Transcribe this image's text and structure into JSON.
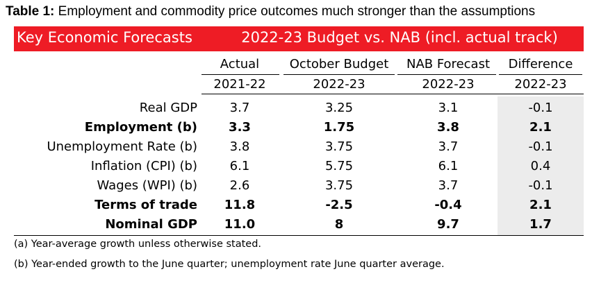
{
  "caption": {
    "prefix": "Table 1:",
    "text": "Employment and commodity price outcomes much stronger than the assumptions"
  },
  "banner": {
    "left": "Key Economic Forecasts",
    "right": "2022-23 Budget vs. NAB (incl. actual track)"
  },
  "columns": [
    {
      "name": "Actual",
      "period": "2021-22"
    },
    {
      "name": "October Budget",
      "period": "2022-23"
    },
    {
      "name": "NAB Forecast",
      "period": "2022-23"
    },
    {
      "name": "Difference",
      "period": "2022-23"
    }
  ],
  "rows": [
    {
      "label": "Real GDP",
      "bold": false,
      "values": [
        "3.7",
        "3.25",
        "3.1",
        "-0.1"
      ]
    },
    {
      "label": "Employment (b)",
      "bold": true,
      "values": [
        "3.3",
        "1.75",
        "3.8",
        "2.1"
      ]
    },
    {
      "label": "Unemployment Rate (b)",
      "bold": false,
      "values": [
        "3.8",
        "3.75",
        "3.7",
        "-0.1"
      ]
    },
    {
      "label": "Inflation (CPI) (b)",
      "bold": false,
      "values": [
        "6.1",
        "5.75",
        "6.1",
        "0.4"
      ]
    },
    {
      "label": "Wages (WPI) (b)",
      "bold": false,
      "values": [
        "2.6",
        "3.75",
        "3.7",
        "-0.1"
      ]
    },
    {
      "label": "Terms of trade",
      "bold": true,
      "values": [
        "11.8",
        "-2.5",
        "-0.4",
        "2.1"
      ]
    },
    {
      "label": "Nominal GDP",
      "bold": true,
      "values": [
        "11.0",
        "8",
        "9.7",
        "1.7"
      ]
    }
  ],
  "footnotes": [
    "(a) Year-average growth unless otherwise stated.",
    "(b) Year-ended growth to the June quarter; unemployment rate June quarter average."
  ]
}
